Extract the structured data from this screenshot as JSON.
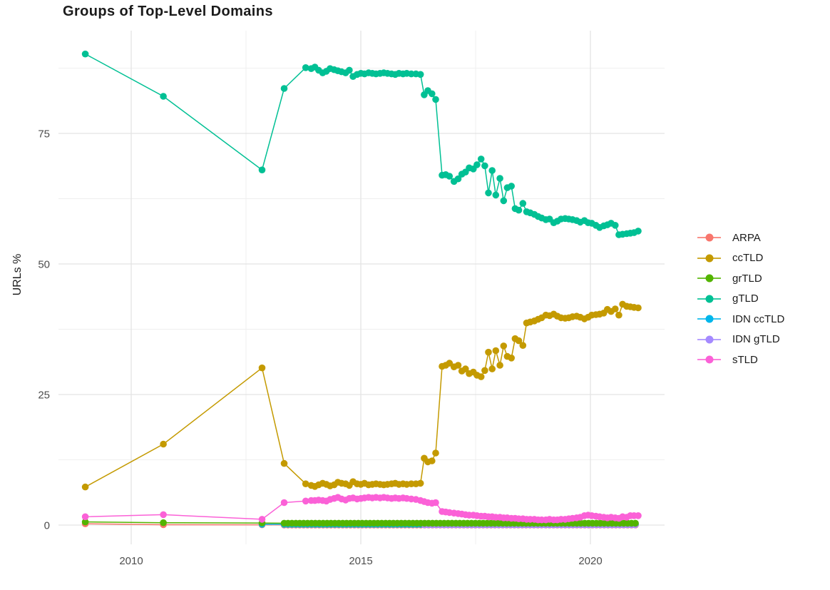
{
  "chart_data": {
    "type": "line",
    "title": "Groups of Top-Level Domains",
    "xlabel": "",
    "ylabel": "URLs %",
    "grid": "white background, light grey major+minor gridlines, no panel border, no tick marks",
    "legend_position": "right",
    "x_axis": {
      "range": [
        2008.4,
        2021.6
      ],
      "ticks": [
        {
          "label": "2010",
          "value": 2010
        },
        {
          "label": "2015",
          "value": 2015
        },
        {
          "label": "2020",
          "value": 2020
        }
      ],
      "minor": [
        2012.5,
        2017.5
      ]
    },
    "y_axis": {
      "range": [
        -3.7,
        94.7
      ],
      "ticks": [
        {
          "label": "0",
          "value": 0
        },
        {
          "label": "25",
          "value": 25
        },
        {
          "label": "50",
          "value": 50
        },
        {
          "label": "75",
          "value": 75
        }
      ],
      "minor": [
        12.5,
        37.5,
        62.5,
        87.5
      ]
    },
    "z_order": [
      "ARPA",
      "IDN ccTLD",
      "IDN gTLD",
      "ccTLD",
      "gTLD",
      "grTLD",
      "sTLD"
    ],
    "series": [
      {
        "name": "ARPA",
        "color": "#F8766D",
        "points": [
          [
            2009,
            0.25
          ],
          [
            2010.7,
            0.07
          ],
          [
            2012.85,
            0.05
          ]
        ],
        "points_uniform": {
          "from": 2013.33,
          "to": 2021.04,
          "step": 0.085,
          "value": 0.03
        }
      },
      {
        "name": "ccTLD",
        "color": "#C49A00",
        "points": [
          [
            2009,
            7.3
          ],
          [
            2010.7,
            15.5
          ],
          [
            2012.85,
            30.1
          ],
          [
            2013.33,
            11.8
          ],
          [
            2013.8,
            7.9
          ],
          [
            2013.92,
            7.6
          ],
          [
            2014,
            7.4
          ],
          [
            2014.08,
            7.7
          ],
          [
            2014.17,
            8
          ],
          [
            2014.25,
            7.8
          ],
          [
            2014.33,
            7.5
          ],
          [
            2014.42,
            7.7
          ],
          [
            2014.5,
            8.2
          ],
          [
            2014.58,
            8
          ],
          [
            2014.67,
            7.9
          ],
          [
            2014.75,
            7.6
          ],
          [
            2014.83,
            8.3
          ],
          [
            2014.92,
            7.9
          ],
          [
            2015,
            7.8
          ],
          [
            2015.08,
            8
          ],
          [
            2015.17,
            7.7
          ],
          [
            2015.25,
            7.8
          ],
          [
            2015.33,
            7.9
          ],
          [
            2015.42,
            7.8
          ],
          [
            2015.5,
            7.7
          ],
          [
            2015.58,
            7.8
          ],
          [
            2015.67,
            7.9
          ],
          [
            2015.75,
            8
          ],
          [
            2015.83,
            7.8
          ],
          [
            2015.92,
            7.9
          ],
          [
            2016,
            7.8
          ],
          [
            2016.1,
            7.9
          ],
          [
            2016.2,
            7.9
          ],
          [
            2016.3,
            8
          ],
          [
            2016.38,
            12.8
          ],
          [
            2016.46,
            12.1
          ],
          [
            2016.55,
            12.3
          ],
          [
            2016.63,
            13.8
          ],
          [
            2016.77,
            30.4
          ],
          [
            2016.85,
            30.6
          ],
          [
            2016.93,
            31
          ],
          [
            2017.03,
            30.3
          ],
          [
            2017.12,
            30.6
          ],
          [
            2017.2,
            29.5
          ],
          [
            2017.28,
            29.9
          ],
          [
            2017.36,
            29
          ],
          [
            2017.45,
            29.3
          ],
          [
            2017.53,
            28.7
          ],
          [
            2017.62,
            28.4
          ],
          [
            2017.7,
            29.6
          ],
          [
            2017.78,
            33.1
          ],
          [
            2017.86,
            29.9
          ],
          [
            2017.94,
            33.4
          ],
          [
            2018.03,
            30.6
          ],
          [
            2018.11,
            34.3
          ],
          [
            2018.19,
            32.3
          ],
          [
            2018.28,
            32
          ],
          [
            2018.36,
            35.7
          ],
          [
            2018.44,
            35.3
          ],
          [
            2018.53,
            34.4
          ],
          [
            2018.61,
            38.7
          ],
          [
            2018.69,
            38.9
          ],
          [
            2018.78,
            39.1
          ],
          [
            2018.86,
            39.4
          ],
          [
            2018.94,
            39.7
          ],
          [
            2019.03,
            40.2
          ],
          [
            2019.11,
            40.1
          ],
          [
            2019.2,
            40.4
          ],
          [
            2019.28,
            40
          ],
          [
            2019.36,
            39.7
          ],
          [
            2019.45,
            39.6
          ],
          [
            2019.53,
            39.7
          ],
          [
            2019.61,
            39.9
          ],
          [
            2019.7,
            40
          ],
          [
            2019.78,
            39.8
          ],
          [
            2019.87,
            39.5
          ],
          [
            2019.95,
            39.8
          ],
          [
            2020.03,
            40.2
          ],
          [
            2020.12,
            40.3
          ],
          [
            2020.2,
            40.4
          ],
          [
            2020.29,
            40.6
          ],
          [
            2020.37,
            41.3
          ],
          [
            2020.45,
            40.9
          ],
          [
            2020.54,
            41.4
          ],
          [
            2020.62,
            40.2
          ],
          [
            2020.7,
            42.3
          ],
          [
            2020.79,
            41.9
          ],
          [
            2020.87,
            41.8
          ],
          [
            2020.95,
            41.7
          ],
          [
            2021.04,
            41.6
          ]
        ]
      },
      {
        "name": "grTLD",
        "color": "#53B400",
        "points": [
          [
            2009,
            0.6
          ],
          [
            2010.7,
            0.45
          ],
          [
            2012.85,
            0.4
          ]
        ],
        "points_uniform": {
          "from": 2013.33,
          "to": 2021.04,
          "step": 0.085,
          "value": 0.35
        }
      },
      {
        "name": "gTLD",
        "color": "#00C094",
        "points": [
          [
            2009,
            90.2
          ],
          [
            2010.7,
            82.1
          ],
          [
            2012.85,
            68
          ],
          [
            2013.33,
            83.6
          ],
          [
            2013.8,
            87.6
          ],
          [
            2013.92,
            87.4
          ],
          [
            2014,
            87.7
          ],
          [
            2014.08,
            87.1
          ],
          [
            2014.17,
            86.6
          ],
          [
            2014.25,
            86.9
          ],
          [
            2014.33,
            87.4
          ],
          [
            2014.42,
            87.2
          ],
          [
            2014.5,
            87
          ],
          [
            2014.58,
            86.8
          ],
          [
            2014.67,
            86.6
          ],
          [
            2014.75,
            87.1
          ],
          [
            2014.83,
            85.9
          ],
          [
            2014.92,
            86.3
          ],
          [
            2015,
            86.5
          ],
          [
            2015.08,
            86.4
          ],
          [
            2015.17,
            86.6
          ],
          [
            2015.25,
            86.5
          ],
          [
            2015.33,
            86.4
          ],
          [
            2015.42,
            86.5
          ],
          [
            2015.5,
            86.6
          ],
          [
            2015.58,
            86.5
          ],
          [
            2015.67,
            86.4
          ],
          [
            2015.75,
            86.3
          ],
          [
            2015.83,
            86.5
          ],
          [
            2015.92,
            86.4
          ],
          [
            2016,
            86.5
          ],
          [
            2016.1,
            86.4
          ],
          [
            2016.2,
            86.4
          ],
          [
            2016.3,
            86.3
          ],
          [
            2016.38,
            82.4
          ],
          [
            2016.46,
            83.2
          ],
          [
            2016.55,
            82.6
          ],
          [
            2016.63,
            81.5
          ],
          [
            2016.77,
            67
          ],
          [
            2016.85,
            67.1
          ],
          [
            2016.93,
            66.8
          ],
          [
            2017.03,
            65.8
          ],
          [
            2017.12,
            66.3
          ],
          [
            2017.2,
            67.2
          ],
          [
            2017.28,
            67.6
          ],
          [
            2017.36,
            68.4
          ],
          [
            2017.45,
            68.2
          ],
          [
            2017.53,
            69
          ],
          [
            2017.62,
            70.1
          ],
          [
            2017.7,
            68.8
          ],
          [
            2017.78,
            63.6
          ],
          [
            2017.86,
            67.9
          ],
          [
            2017.94,
            63.2
          ],
          [
            2018.03,
            66.4
          ],
          [
            2018.11,
            62.1
          ],
          [
            2018.19,
            64.6
          ],
          [
            2018.28,
            64.9
          ],
          [
            2018.36,
            60.6
          ],
          [
            2018.44,
            60.3
          ],
          [
            2018.53,
            61.6
          ],
          [
            2018.61,
            60
          ],
          [
            2018.69,
            59.8
          ],
          [
            2018.78,
            59.5
          ],
          [
            2018.86,
            59.1
          ],
          [
            2018.94,
            58.8
          ],
          [
            2019.03,
            58.5
          ],
          [
            2019.11,
            58.6
          ],
          [
            2019.2,
            57.9
          ],
          [
            2019.28,
            58.2
          ],
          [
            2019.36,
            58.6
          ],
          [
            2019.45,
            58.7
          ],
          [
            2019.53,
            58.6
          ],
          [
            2019.61,
            58.5
          ],
          [
            2019.7,
            58.3
          ],
          [
            2019.78,
            58
          ],
          [
            2019.87,
            58.3
          ],
          [
            2019.95,
            57.9
          ],
          [
            2020.03,
            57.8
          ],
          [
            2020.12,
            57.4
          ],
          [
            2020.2,
            57
          ],
          [
            2020.29,
            57.3
          ],
          [
            2020.37,
            57.5
          ],
          [
            2020.45,
            57.8
          ],
          [
            2020.54,
            57.4
          ],
          [
            2020.62,
            55.6
          ],
          [
            2020.7,
            55.7
          ],
          [
            2020.79,
            55.8
          ],
          [
            2020.87,
            55.9
          ],
          [
            2020.95,
            56
          ],
          [
            2021.04,
            56.3
          ]
        ]
      },
      {
        "name": "IDN ccTLD",
        "color": "#00B6EB",
        "points": [
          [
            2012.85,
            0.15
          ]
        ],
        "points_uniform": {
          "from": 2013.33,
          "to": 2021.04,
          "step": 0.085,
          "value": 0.15
        }
      },
      {
        "name": "IDN gTLD",
        "color": "#A58AFF",
        "points": [],
        "points_uniform": {
          "from": 2016.38,
          "to": 2021.04,
          "step": 0.085,
          "value": 0.06
        }
      },
      {
        "name": "sTLD",
        "color": "#FB61D7",
        "points": [
          [
            2009,
            1.6
          ],
          [
            2010.7,
            2
          ],
          [
            2012.85,
            1.1
          ],
          [
            2013.33,
            4.3
          ],
          [
            2013.8,
            4.6
          ],
          [
            2013.92,
            4.7
          ],
          [
            2014,
            4.7
          ],
          [
            2014.08,
            4.8
          ],
          [
            2014.17,
            4.7
          ],
          [
            2014.25,
            4.6
          ],
          [
            2014.33,
            4.9
          ],
          [
            2014.42,
            5.1
          ],
          [
            2014.5,
            5.3
          ],
          [
            2014.58,
            5
          ],
          [
            2014.67,
            4.8
          ],
          [
            2014.75,
            5.1
          ],
          [
            2014.83,
            5.2
          ],
          [
            2014.92,
            5
          ],
          [
            2015,
            5.1
          ],
          [
            2015.08,
            5.2
          ],
          [
            2015.17,
            5.3
          ],
          [
            2015.25,
            5.2
          ],
          [
            2015.33,
            5.3
          ],
          [
            2015.42,
            5.2
          ],
          [
            2015.5,
            5.3
          ],
          [
            2015.58,
            5.2
          ],
          [
            2015.67,
            5.1
          ],
          [
            2015.75,
            5.2
          ],
          [
            2015.83,
            5.1
          ],
          [
            2015.92,
            5.2
          ],
          [
            2016,
            5.1
          ],
          [
            2016.1,
            5
          ],
          [
            2016.2,
            4.9
          ],
          [
            2016.3,
            4.7
          ],
          [
            2016.38,
            4.5
          ],
          [
            2016.46,
            4.3
          ],
          [
            2016.55,
            4.2
          ],
          [
            2016.63,
            4.3
          ],
          [
            2016.77,
            2.6
          ],
          [
            2016.85,
            2.5
          ],
          [
            2016.93,
            2.4
          ],
          [
            2017.03,
            2.3
          ],
          [
            2017.12,
            2.2
          ],
          [
            2017.2,
            2.1
          ],
          [
            2017.28,
            2
          ],
          [
            2017.36,
            1.9
          ],
          [
            2017.45,
            1.9
          ],
          [
            2017.53,
            1.8
          ],
          [
            2017.62,
            1.7
          ],
          [
            2017.7,
            1.7
          ],
          [
            2017.78,
            1.6
          ],
          [
            2017.86,
            1.6
          ],
          [
            2017.94,
            1.5
          ],
          [
            2018.03,
            1.5
          ],
          [
            2018.11,
            1.4
          ],
          [
            2018.19,
            1.4
          ],
          [
            2018.28,
            1.3
          ],
          [
            2018.36,
            1.3
          ],
          [
            2018.44,
            1.2
          ],
          [
            2018.53,
            1.2
          ],
          [
            2018.61,
            1.1
          ],
          [
            2018.69,
            1.1
          ],
          [
            2018.78,
            1.1
          ],
          [
            2018.86,
            1
          ],
          [
            2018.94,
            1
          ],
          [
            2019.03,
            1
          ],
          [
            2019.11,
            1.1
          ],
          [
            2019.2,
            1
          ],
          [
            2019.28,
            1
          ],
          [
            2019.36,
            1.1
          ],
          [
            2019.45,
            1.1
          ],
          [
            2019.53,
            1.2
          ],
          [
            2019.61,
            1.3
          ],
          [
            2019.7,
            1.4
          ],
          [
            2019.78,
            1.5
          ],
          [
            2019.87,
            1.8
          ],
          [
            2019.95,
            1.9
          ],
          [
            2020.03,
            1.8
          ],
          [
            2020.12,
            1.7
          ],
          [
            2020.2,
            1.6
          ],
          [
            2020.29,
            1.5
          ],
          [
            2020.37,
            1.4
          ],
          [
            2020.45,
            1.5
          ],
          [
            2020.54,
            1.4
          ],
          [
            2020.62,
            1.3
          ],
          [
            2020.7,
            1.6
          ],
          [
            2020.79,
            1.5
          ],
          [
            2020.87,
            1.8
          ],
          [
            2020.95,
            1.8
          ],
          [
            2021.04,
            1.8
          ]
        ]
      }
    ],
    "style": {
      "grid_major_color": "#E3E3E3",
      "grid_minor_color": "#EFEFEF",
      "tick_label_color": "#4d4d4d",
      "title_color": "#1b1b1b",
      "point_radius": 4.8,
      "line_width": 1.5
    }
  }
}
